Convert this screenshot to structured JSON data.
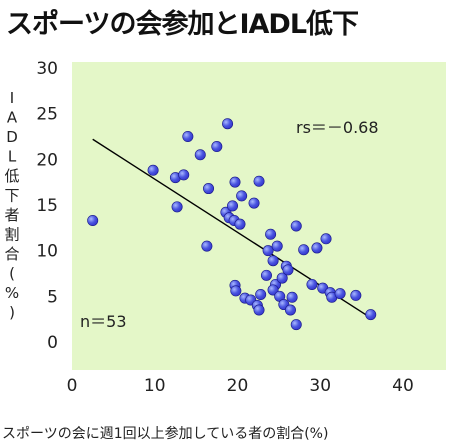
{
  "title": "スポーツの会参加とIADL低下",
  "chart_data": {
    "type": "scatter",
    "title": "スポーツの会参加とIADL低下",
    "xlabel": "スポーツの会に週1回以上参加している者の割合(%)",
    "ylabel": "IADL低下者割合(%)",
    "xlim": [
      0,
      45
    ],
    "ylim": [
      0,
      30
    ],
    "x_ticks": [
      "0",
      "10",
      "20",
      "30",
      "40"
    ],
    "y_ticks": [
      "0",
      "5",
      "10",
      "15",
      "20",
      "25",
      "30"
    ],
    "grid": false,
    "annotations": {
      "rs": "rs＝－0.68",
      "n": "n＝53"
    },
    "trendline": {
      "x": [
        2.5,
        36
      ],
      "y": [
        22.2,
        2.7
      ]
    },
    "colors": {
      "plot_bg": "#e4f7c8",
      "marker": "#3333cc",
      "line": "#000000"
    },
    "points": [
      {
        "x": 2.5,
        "y": 13.3
      },
      {
        "x": 9.8,
        "y": 18.8
      },
      {
        "x": 12.5,
        "y": 18.0
      },
      {
        "x": 13.5,
        "y": 18.3
      },
      {
        "x": 12.7,
        "y": 14.8
      },
      {
        "x": 14.0,
        "y": 22.5
      },
      {
        "x": 15.5,
        "y": 20.5
      },
      {
        "x": 17.5,
        "y": 21.4
      },
      {
        "x": 18.8,
        "y": 23.9
      },
      {
        "x": 16.5,
        "y": 16.8
      },
      {
        "x": 16.3,
        "y": 10.5
      },
      {
        "x": 18.6,
        "y": 14.2
      },
      {
        "x": 19.0,
        "y": 13.6
      },
      {
        "x": 19.6,
        "y": 13.3
      },
      {
        "x": 20.3,
        "y": 12.9
      },
      {
        "x": 19.4,
        "y": 14.9
      },
      {
        "x": 19.7,
        "y": 17.5
      },
      {
        "x": 20.5,
        "y": 16.0
      },
      {
        "x": 22.6,
        "y": 17.6
      },
      {
        "x": 22.0,
        "y": 15.2
      },
      {
        "x": 19.7,
        "y": 6.2
      },
      {
        "x": 19.8,
        "y": 5.6
      },
      {
        "x": 20.9,
        "y": 4.8
      },
      {
        "x": 21.6,
        "y": 4.6
      },
      {
        "x": 22.4,
        "y": 4.0
      },
      {
        "x": 22.6,
        "y": 3.5
      },
      {
        "x": 22.8,
        "y": 5.2
      },
      {
        "x": 23.5,
        "y": 7.3
      },
      {
        "x": 23.7,
        "y": 10.0
      },
      {
        "x": 24.0,
        "y": 11.8
      },
      {
        "x": 24.3,
        "y": 8.9
      },
      {
        "x": 24.6,
        "y": 6.3
      },
      {
        "x": 24.3,
        "y": 5.7
      },
      {
        "x": 24.8,
        "y": 10.5
      },
      {
        "x": 25.1,
        "y": 5.0
      },
      {
        "x": 25.4,
        "y": 7.0
      },
      {
        "x": 25.9,
        "y": 8.3
      },
      {
        "x": 26.1,
        "y": 7.9
      },
      {
        "x": 25.6,
        "y": 4.1
      },
      {
        "x": 26.4,
        "y": 3.5
      },
      {
        "x": 26.6,
        "y": 4.9
      },
      {
        "x": 27.1,
        "y": 12.7
      },
      {
        "x": 27.1,
        "y": 1.9
      },
      {
        "x": 28.0,
        "y": 10.1
      },
      {
        "x": 29.6,
        "y": 10.3
      },
      {
        "x": 29.0,
        "y": 6.3
      },
      {
        "x": 30.3,
        "y": 5.9
      },
      {
        "x": 30.7,
        "y": 11.3
      },
      {
        "x": 31.2,
        "y": 5.4
      },
      {
        "x": 31.4,
        "y": 4.9
      },
      {
        "x": 32.4,
        "y": 5.3
      },
      {
        "x": 34.3,
        "y": 5.1
      },
      {
        "x": 36.1,
        "y": 3.0
      }
    ]
  }
}
